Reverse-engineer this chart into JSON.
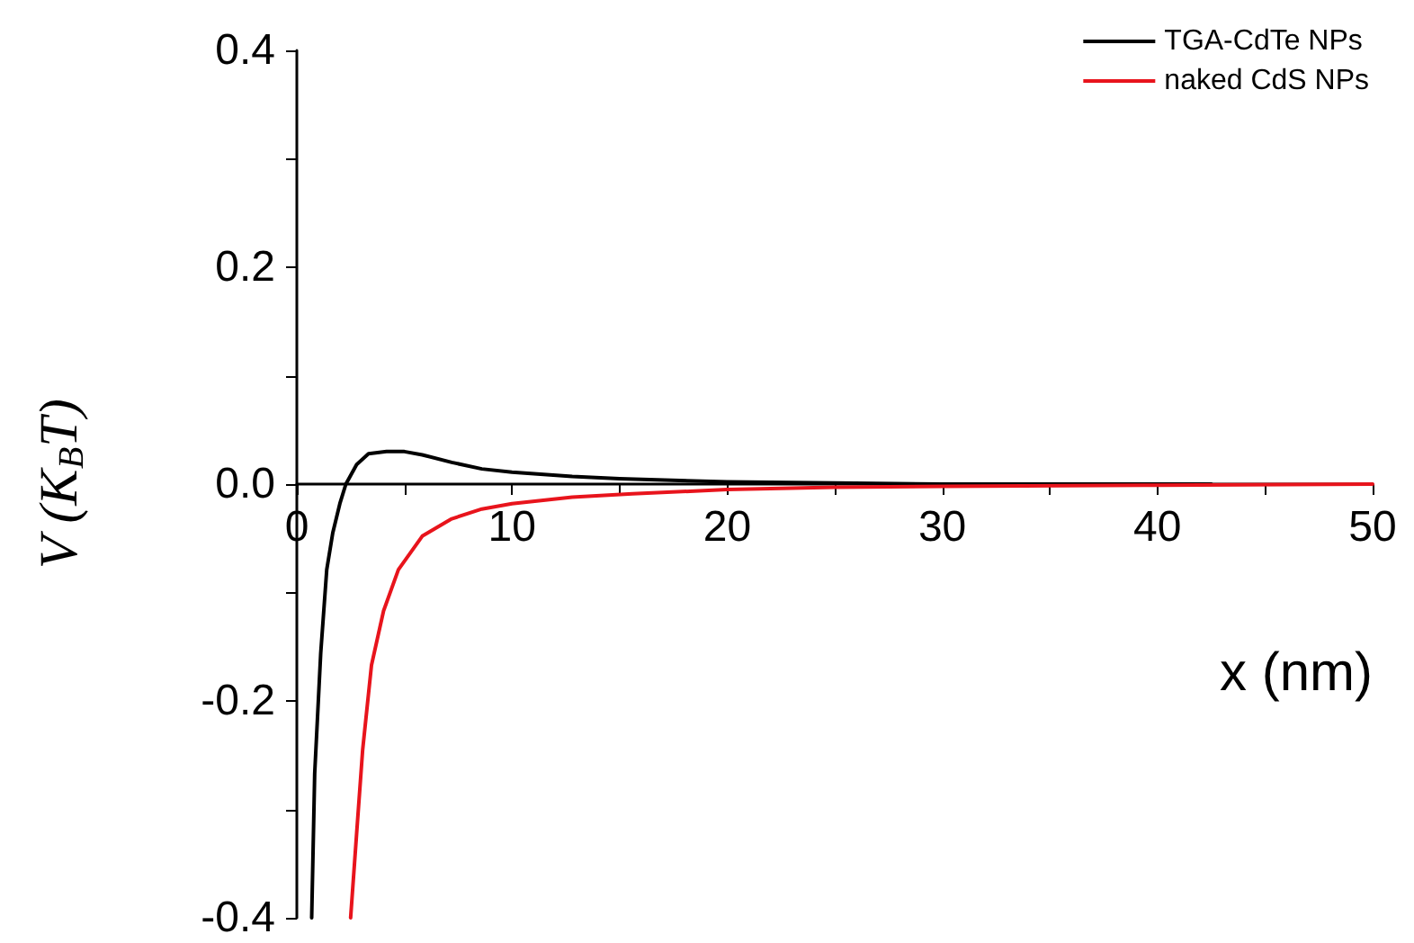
{
  "chart_data": {
    "type": "line",
    "xlabel": "x (nm)",
    "ylabel": "V (K$_{B}$T)",
    "xlim": [
      0,
      50
    ],
    "ylim": [
      -0.4,
      0.4
    ],
    "xticks": [
      0,
      {
        "value": 5,
        "label": null
      },
      10,
      {
        "value": 15,
        "label": null
      },
      20,
      {
        "value": 25,
        "label": null
      },
      30,
      {
        "value": 35,
        "label": null
      },
      40,
      {
        "value": 45,
        "label": null
      },
      50
    ],
    "yticks": [
      -0.4,
      {
        "value": -0.3,
        "label": null
      },
      -0.2,
      {
        "value": -0.1,
        "label": null
      },
      {
        "value": 0,
        "label": "0.0"
      },
      {
        "value": 0.1,
        "label": null
      },
      0.2,
      {
        "value": 0.3,
        "label": null
      },
      0.4
    ],
    "grid": false,
    "legend": "top right",
    "marker": "none",
    "line_style": "solid",
    "series": [
      {
        "name": "TGA-CdTe NPs",
        "color": "#000000",
        "x": [
          0.69,
          0.83,
          1.11,
          1.39,
          1.67,
          2.0,
          2.28,
          2.78,
          3.33,
          4.17,
          5.0,
          5.83,
          7.2,
          8.6,
          10,
          12.8,
          15,
          20,
          25,
          30,
          42.5
        ],
        "values": [
          -0.4,
          -0.267,
          -0.156,
          -0.079,
          -0.045,
          -0.018,
          0,
          0.018,
          0.028,
          0.03,
          0.03,
          0.027,
          0.02,
          0.014,
          0.011,
          0.007,
          0.005,
          0.002,
          0.001,
          0,
          0
        ]
      },
      {
        "name": "naked CdS NPs",
        "color": "#e8141c",
        "x": [
          2.5,
          2.78,
          3.06,
          3.47,
          4.03,
          4.72,
          5.83,
          7.2,
          8.6,
          10,
          12.8,
          15.6,
          20,
          25,
          30,
          40,
          50
        ],
        "values": [
          -0.4,
          -0.322,
          -0.245,
          -0.167,
          -0.117,
          -0.079,
          -0.048,
          -0.032,
          -0.023,
          -0.018,
          -0.012,
          -0.009,
          -0.005,
          -0.003,
          -0.002,
          -0.001,
          0
        ]
      }
    ]
  }
}
